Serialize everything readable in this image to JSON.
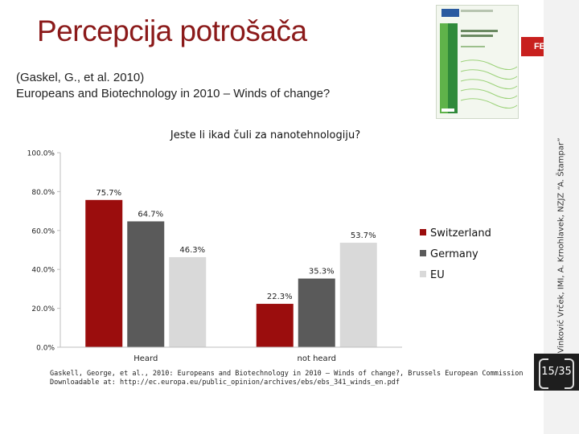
{
  "slide": {
    "title": "Percepcija potrošača",
    "subtitle_line1": "(Gaskel, G., et al. 2010)",
    "subtitle_line2": "Europeans and Biotechnology in 2010 – Winds of change?",
    "side_note": "I. Vinković Vrček, IMI, A. Krnohlavek, NZJZ “A. Štampar”",
    "page_number": "15/35",
    "source_line1": "Gaskell, George, et al., 2010: Europeans and Biotechnology in 2010 – Winds of change?, Brussels European Commission",
    "source_line2": "Downloadable at: http://ec.europa.eu/public_opinion/archives/ebs/ebs_341_winds_en.pdf",
    "logo_text": "FEST CROP"
  },
  "chart_data": {
    "type": "bar",
    "title": "Jeste li ikad čuli za nanotehnologiju?",
    "categories": [
      "Heard",
      "not heard"
    ],
    "series": [
      {
        "name": "Switzerland",
        "values": [
          75.7,
          22.3
        ],
        "labels": [
          "75.7%",
          "22.3%"
        ],
        "color": "#9b0d0d"
      },
      {
        "name": "Germany",
        "values": [
          64.7,
          35.3
        ],
        "labels": [
          "64.7%",
          "35.3%"
        ],
        "color": "#5a5a5a"
      },
      {
        "name": "EU",
        "values": [
          46.3,
          53.7
        ],
        "labels": [
          "46.3%",
          "53.7%"
        ],
        "color": "#d9d9d9"
      }
    ],
    "yticks": [
      "0.0%",
      "20.0%",
      "40.0%",
      "60.0%",
      "80.0%",
      "100.0%"
    ],
    "ylim": [
      0,
      100
    ],
    "grid": false,
    "legend_position": "right"
  }
}
